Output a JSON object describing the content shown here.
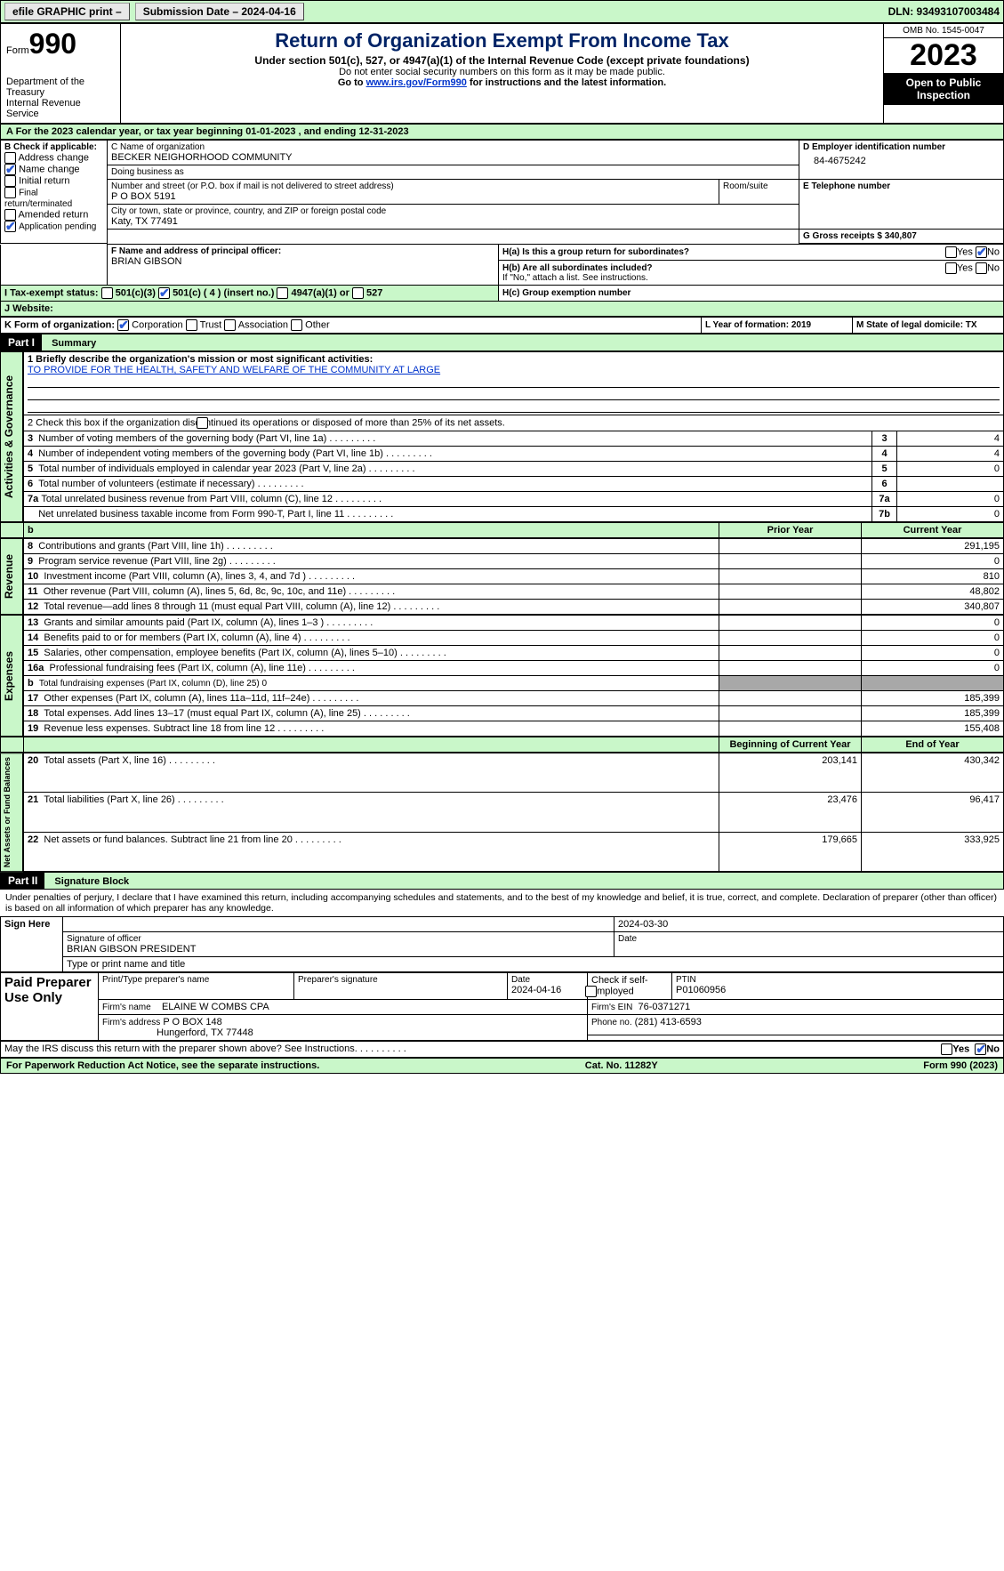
{
  "topbar": {
    "efile": "efile GRAPHIC print –",
    "sub_label": "Submission Date – 2024-04-16",
    "dln_label": "DLN: 93493107003484"
  },
  "header": {
    "form_prefix": "Form",
    "form_num": "990",
    "dept": "Department of the Treasury",
    "irs": "Internal Revenue Service",
    "title": "Return of Organization Exempt From Income Tax",
    "sub": "Under section 501(c), 527, or 4947(a)(1) of the Internal Revenue Code (except private foundations)",
    "note1": "Do not enter social security numbers on this form as it may be made public.",
    "note2_pre": "Go to ",
    "note2_link": "www.irs.gov/Form990",
    "note2_post": " for instructions and the latest information.",
    "omb": "OMB No. 1545-0047",
    "year": "2023",
    "public": "Open to Public Inspection"
  },
  "band_a": {
    "text": "A For the 2023 calendar year, or tax year beginning 01-01-2023    , and ending 12-31-2023"
  },
  "colB": {
    "heading": "B Check if applicable:",
    "items": [
      {
        "label": "Address change",
        "checked": false
      },
      {
        "label": "Name change",
        "checked": true
      },
      {
        "label": "Initial return",
        "checked": false
      },
      {
        "label": "Final return/terminated",
        "checked": false
      },
      {
        "label": "Amended return",
        "checked": false
      },
      {
        "label": "Application pending",
        "checked": true
      }
    ]
  },
  "colC": {
    "name_label": "C Name of organization",
    "name": "BECKER NEIGHORHOOD COMMUNITY",
    "dba_label": "Doing business as",
    "dba": "",
    "addr_label": "Number and street (or P.O. box if mail is not delivered to street address)",
    "addr": "P O BOX 5191",
    "room_label": "Room/suite",
    "city_label": "City or town, state or province, country, and ZIP or foreign postal code",
    "city": "Katy, TX  77491"
  },
  "colD": {
    "label": "D Employer identification number",
    "value": "84-4675242"
  },
  "colE": {
    "label": "E Telephone number",
    "value": ""
  },
  "colG": {
    "label": "G Gross receipts $ 340,807"
  },
  "colF": {
    "label": "F  Name and address of principal officer:",
    "name": "BRIAN GIBSON"
  },
  "colH": {
    "a_label": "H(a)  Is this a group return for subordinates?",
    "a_yes": "Yes",
    "a_no": "No",
    "b_label": "H(b)  Are all subordinates included?",
    "b_yes": "Yes",
    "b_no": "No",
    "b_note": "If \"No,\" attach a list. See instructions.",
    "c_label": "H(c)  Group exemption number"
  },
  "rowI": {
    "label": "I   Tax-exempt status:",
    "o1": "501(c)(3)",
    "o2": "501(c) ( 4 ) (insert no.)",
    "o3": "4947(a)(1) or",
    "o4": "527"
  },
  "rowJ": {
    "label": "J   Website:"
  },
  "rowK": {
    "label": "K Form of organization:",
    "o1": "Corporation",
    "o2": "Trust",
    "o3": "Association",
    "o4": "Other"
  },
  "rowL": {
    "label": "L Year of formation: 2019"
  },
  "rowM": {
    "label": "M State of legal domicile: TX"
  },
  "part1": {
    "num": "Part I",
    "title": "Summary",
    "l1_label": "1  Briefly describe the organization's mission or most significant activities:",
    "l1_value": "TO PROVIDE FOR THE HEALTH, SAFETY AND WELFARE OF THE COMMUNITY AT LARGE",
    "l2": "2   Check this box     if the organization discontinued its operations or disposed of more than 25% of its net assets.",
    "rows_top": [
      {
        "n": "3",
        "label": "Number of voting members of the governing body (Part VI, line 1a)",
        "box": "3",
        "val": "4"
      },
      {
        "n": "4",
        "label": "Number of independent voting members of the governing body (Part VI, line 1b)",
        "box": "4",
        "val": "4"
      },
      {
        "n": "5",
        "label": "Total number of individuals employed in calendar year 2023 (Part V, line 2a)",
        "box": "5",
        "val": "0"
      },
      {
        "n": "6",
        "label": "Total number of volunteers (estimate if necessary)",
        "box": "6",
        "val": ""
      },
      {
        "n": "7a",
        "label": "Total unrelated business revenue from Part VIII, column (C), line 12",
        "box": "7a",
        "val": "0"
      },
      {
        "n": "",
        "label": "Net unrelated business taxable income from Form 990-T, Part I, line 11",
        "box": "7b",
        "val": "0"
      }
    ],
    "col_prior": "Prior Year",
    "col_current": "Current Year",
    "revenue": [
      {
        "n": "8",
        "label": "Contributions and grants (Part VIII, line 1h)",
        "prior": "",
        "cur": "291,195"
      },
      {
        "n": "9",
        "label": "Program service revenue (Part VIII, line 2g)",
        "prior": "",
        "cur": "0"
      },
      {
        "n": "10",
        "label": "Investment income (Part VIII, column (A), lines 3, 4, and 7d )",
        "prior": "",
        "cur": "810"
      },
      {
        "n": "11",
        "label": "Other revenue (Part VIII, column (A), lines 5, 6d, 8c, 9c, 10c, and 11e)",
        "prior": "",
        "cur": "48,802"
      },
      {
        "n": "12",
        "label": "Total revenue—add lines 8 through 11 (must equal Part VIII, column (A), line 12)",
        "prior": "",
        "cur": "340,807"
      }
    ],
    "expenses": [
      {
        "n": "13",
        "label": "Grants and similar amounts paid (Part IX, column (A), lines 1–3 )",
        "prior": "",
        "cur": "0"
      },
      {
        "n": "14",
        "label": "Benefits paid to or for members (Part IX, column (A), line 4)",
        "prior": "",
        "cur": "0"
      },
      {
        "n": "15",
        "label": "Salaries, other compensation, employee benefits (Part IX, column (A), lines 5–10)",
        "prior": "",
        "cur": "0"
      },
      {
        "n": "16a",
        "label": "Professional fundraising fees (Part IX, column (A), line 11e)",
        "prior": "",
        "cur": "0"
      },
      {
        "n": "b",
        "label": "Total fundraising expenses (Part IX, column (D), line 25) 0",
        "prior": "SHADE",
        "cur": "SHADE",
        "small": true
      },
      {
        "n": "17",
        "label": "Other expenses (Part IX, column (A), lines 11a–11d, 11f–24e)",
        "prior": "",
        "cur": "185,399"
      },
      {
        "n": "18",
        "label": "Total expenses. Add lines 13–17 (must equal Part IX, column (A), line 25)",
        "prior": "",
        "cur": "185,399"
      },
      {
        "n": "19",
        "label": "Revenue less expenses. Subtract line 18 from line 12",
        "prior": "",
        "cur": "155,408"
      }
    ],
    "col_beg": "Beginning of Current Year",
    "col_end": "End of Year",
    "netassets": [
      {
        "n": "20",
        "label": "Total assets (Part X, line 16)",
        "beg": "203,141",
        "end": "430,342"
      },
      {
        "n": "21",
        "label": "Total liabilities (Part X, line 26)",
        "beg": "23,476",
        "end": "96,417"
      },
      {
        "n": "22",
        "label": "Net assets or fund balances. Subtract line 21 from line 20",
        "beg": "179,665",
        "end": "333,925"
      }
    ],
    "side_ag": "Activities & Governance",
    "side_rev": "Revenue",
    "side_exp": "Expenses",
    "side_net": "Net Assets or Fund Balances"
  },
  "part2": {
    "num": "Part II",
    "title": "Signature Block",
    "decl": "Under penalties of perjury, I declare that I have examined this return, including accompanying schedules and statements, and to the best of my knowledge and belief, it is true, correct, and complete. Declaration of preparer (other than officer) is based on all information of which preparer has any knowledge.",
    "sign_here": "Sign Here",
    "sig_of_officer": "Signature of officer",
    "officer": "BRIAN GIBSON  PRESIDENT",
    "type_label": "Type or print name and title",
    "date_label": "Date",
    "date_val": "2024-03-30",
    "paid": "Paid Preparer Use Only",
    "p_name_label": "Print/Type preparer's name",
    "p_sig_label": "Preparer's signature",
    "p_date_label": "Date",
    "p_date": "2024-04-16",
    "p_check_label": "Check        if self-employed",
    "ptin_label": "PTIN",
    "ptin": "P01060956",
    "firm_name_label": "Firm's name",
    "firm_name": "ELAINE W COMBS CPA",
    "firm_ein_label": "Firm's EIN",
    "firm_ein": "76-0371271",
    "firm_addr_label": "Firm's address",
    "firm_addr1": "P O BOX 148",
    "firm_addr2": "Hungerford, TX  77448",
    "phone_label": "Phone no.",
    "phone": "(281) 413-6593",
    "may_irs": "May the IRS discuss this return with the preparer shown above? See Instructions.",
    "yes": "Yes",
    "no": "No"
  },
  "footer": {
    "left": "For Paperwork Reduction Act Notice, see the separate instructions.",
    "mid": "Cat. No. 11282Y",
    "right": "Form 990 (2023)"
  }
}
